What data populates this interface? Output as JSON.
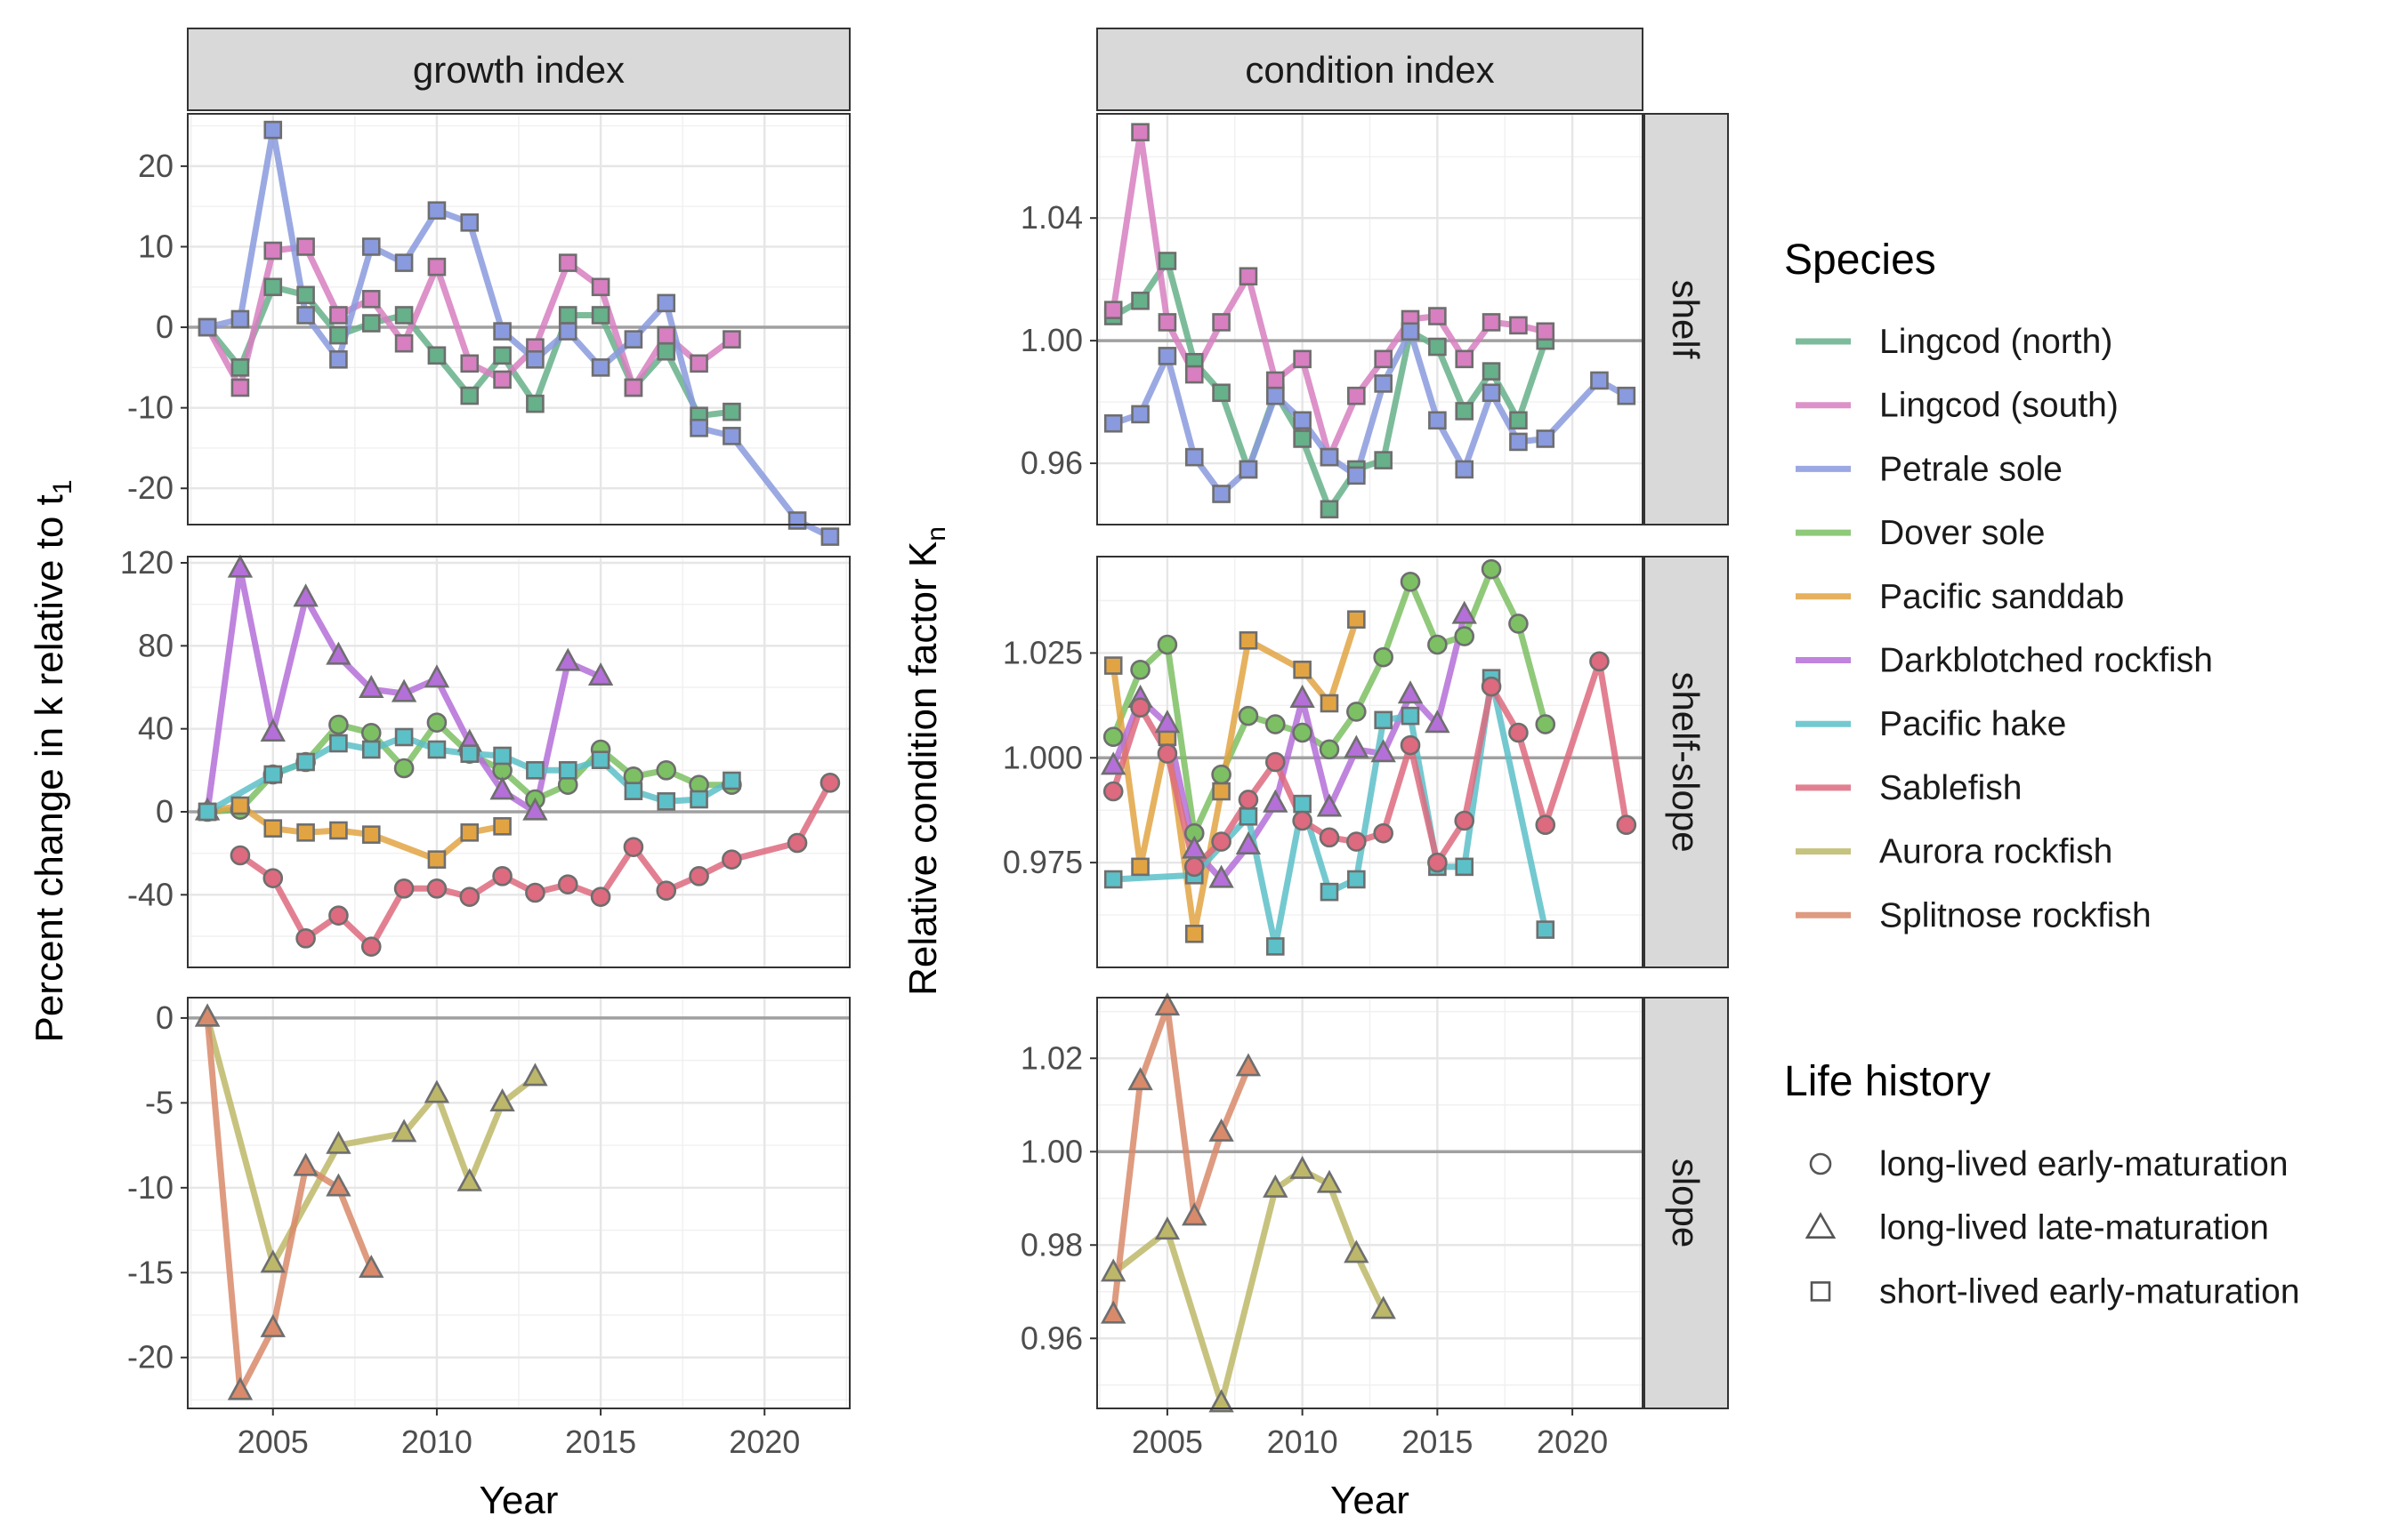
{
  "colors": {
    "Lingcod (north)": "#66b08a",
    "Lingcod (south)": "#d77fc0",
    "Petrale sole": "#8a9ade",
    "Dover sole": "#7cc063",
    "Pacific sanddab": "#e2a443",
    "Darkblotched rockfish": "#b46fd8",
    "Pacific hake": "#5cc0c8",
    "Sablefish": "#dd6a7e",
    "Aurora rockfish": "#bdb869",
    "Splitnose rockfish": "#d88a6a"
  },
  "chart_data": {
    "type": "line",
    "xlabel": "Year",
    "columns": [
      {
        "name": "growth",
        "strip": "growth index",
        "ylabel": "Percent change in k relative to t",
        "ylabel_sub": "1"
      },
      {
        "name": "condition",
        "strip": "condition index",
        "ylabel": "Relative condition factor K",
        "ylabel_sub": "n"
      }
    ],
    "rows": [
      {
        "name": "shelf",
        "strip": "shelf"
      },
      {
        "name": "shelfslope",
        "strip": "shelf-slope"
      },
      {
        "name": "slope",
        "strip": "slope"
      }
    ],
    "x_ticks": [
      2005,
      2010,
      2015,
      2020
    ],
    "x_ticks_labels": [
      "2005",
      "2010",
      "2015",
      "2020"
    ],
    "xlim": [
      2002.4,
      2022.6
    ],
    "legend": {
      "species_title": "Species",
      "species": [
        "Lingcod (north)",
        "Lingcod (south)",
        "Petrale sole",
        "Dover sole",
        "Pacific sanddab",
        "Darkblotched rockfish",
        "Pacific hake",
        "Sablefish",
        "Aurora rockfish",
        "Splitnose rockfish"
      ],
      "life_title": "Life history",
      "life": [
        {
          "label": "long-lived early-maturation",
          "shape": "circle"
        },
        {
          "label": "long-lived late-maturation",
          "shape": "triangle"
        },
        {
          "label": "short-lived early-maturation",
          "shape": "square"
        }
      ]
    },
    "panels": [
      {
        "col": "growth",
        "row": "shelf",
        "ylim": [
          -24.5,
          26.5
        ],
        "yticks": [
          20,
          10,
          0,
          -10,
          -20
        ],
        "yticks_labels": [
          "20",
          "10",
          "0",
          "-10",
          "-20"
        ],
        "ref": 0,
        "series": [
          {
            "species": "Lingcod (north)",
            "shape": "square",
            "x": [
              2003,
              2004,
              2005,
              2006,
              2007,
              2008,
              2009,
              2010,
              2011,
              2012,
              2013,
              2014,
              2015,
              2016,
              2017,
              2018,
              2019
            ],
            "y": [
              0,
              -5,
              5,
              4,
              -1,
              0.5,
              1.5,
              -3.5,
              -8.5,
              -3.5,
              -9.5,
              1.5,
              1.5,
              -7.5,
              -3,
              -11,
              -10.5
            ]
          },
          {
            "species": "Lingcod (south)",
            "shape": "square",
            "x": [
              2003,
              2004,
              2005,
              2006,
              2007,
              2008,
              2009,
              2010,
              2011,
              2012,
              2013,
              2014,
              2015,
              2016,
              2017,
              2018,
              2019
            ],
            "y": [
              0,
              -7.5,
              9.5,
              10,
              1.5,
              3.5,
              -2,
              7.5,
              -4.5,
              -6.5,
              -2.5,
              8,
              5,
              -7.5,
              -1,
              -4.5,
              -1.5
            ]
          },
          {
            "species": "Petrale sole",
            "shape": "square",
            "x": [
              2003,
              2004,
              2005,
              2006,
              2007,
              2008,
              2009,
              2010,
              2011,
              2012,
              2013,
              2014,
              2015,
              2016,
              2017,
              2018,
              2019,
              2021,
              2022
            ],
            "y": [
              0,
              1,
              24.5,
              1.5,
              -4,
              10,
              8,
              14.5,
              13,
              -0.5,
              -4,
              -0.5,
              -5,
              -1.5,
              3,
              -12.5,
              -13.5,
              -24,
              -26
            ]
          }
        ]
      },
      {
        "col": "growth",
        "row": "shelfslope",
        "ylim": [
          -75,
          123
        ],
        "yticks": [
          120,
          80,
          40,
          0,
          -40
        ],
        "yticks_labels": [
          "120",
          "80",
          "40",
          "0",
          "-40"
        ],
        "ref": 0,
        "series": [
          {
            "species": "Dover sole",
            "shape": "circle",
            "x": [
              2003,
              2004,
              2005,
              2006,
              2007,
              2008,
              2009,
              2010,
              2011,
              2012,
              2013,
              2014,
              2015,
              2016,
              2017,
              2018,
              2019
            ],
            "y": [
              0,
              1,
              18,
              24,
              42,
              38,
              21,
              43,
              28,
              20,
              6,
              13,
              30,
              17,
              20,
              13,
              13
            ]
          },
          {
            "species": "Pacific sanddab",
            "shape": "square",
            "x": [
              2003,
              2004,
              2005,
              2006,
              2007,
              2008,
              2010,
              2011,
              2012
            ],
            "y": [
              0,
              3,
              -8,
              -10,
              -9,
              -11,
              -23,
              -10,
              -7
            ]
          },
          {
            "species": "Darkblotched rockfish",
            "shape": "triangle",
            "x": [
              2003,
              2004,
              2005,
              2006,
              2007,
              2008,
              2009,
              2010,
              2011,
              2012,
              2013,
              2014,
              2015
            ],
            "y": [
              0,
              117,
              38,
              103,
              75,
              59,
              57,
              64,
              33,
              10,
              0,
              72,
              65
            ]
          },
          {
            "species": "Pacific hake",
            "shape": "square",
            "x": [
              2003,
              2005,
              2006,
              2007,
              2008,
              2009,
              2010,
              2011,
              2012,
              2013,
              2014,
              2015,
              2016,
              2017,
              2018,
              2019
            ],
            "y": [
              0,
              18,
              24,
              33,
              30,
              36,
              30,
              28,
              27,
              20,
              20,
              25,
              10,
              5,
              6,
              15
            ]
          },
          {
            "species": "Sablefish",
            "shape": "circle",
            "x": [
              2004,
              2005,
              2006,
              2007,
              2008,
              2009,
              2010,
              2011,
              2012,
              2013,
              2014,
              2015,
              2016,
              2017,
              2018,
              2019,
              2021,
              2022
            ],
            "y": [
              -21,
              -32,
              -61,
              -50,
              -65,
              -37,
              -37,
              -41,
              -31,
              -39,
              -35,
              -41,
              -17,
              -38,
              -31,
              -23,
              -15,
              14
            ]
          }
        ]
      },
      {
        "col": "growth",
        "row": "slope",
        "ylim": [
          -23,
          1.2
        ],
        "yticks": [
          0,
          -5,
          -10,
          -15,
          -20
        ],
        "yticks_labels": [
          "0",
          "-5",
          "-10",
          "-15",
          "-20"
        ],
        "ref": 0,
        "series": [
          {
            "species": "Aurora rockfish",
            "shape": "triangle",
            "x": [
              2003,
              2005,
              2007,
              2009,
              2010,
              2011,
              2012,
              2013
            ],
            "y": [
              0,
              -14.5,
              -7.5,
              -6.8,
              -4.5,
              -9.7,
              -5,
              -3.5
            ]
          },
          {
            "species": "Splitnose rockfish",
            "shape": "triangle",
            "x": [
              2003,
              2004,
              2005,
              2006,
              2007,
              2008
            ],
            "y": [
              0,
              -22,
              -18.3,
              -8.8,
              -10,
              -14.8
            ]
          }
        ]
      },
      {
        "col": "condition",
        "row": "shelf",
        "ylim": [
          0.94,
          1.074
        ],
        "yticks": [
          1.04,
          1.0,
          0.96
        ],
        "yticks_labels": [
          "1.04",
          "1.00",
          "0.96"
        ],
        "ref": 1.0,
        "series": [
          {
            "species": "Lingcod (north)",
            "shape": "square",
            "x": [
              2003,
              2004,
              2005,
              2006,
              2007,
              2008,
              2009,
              2010,
              2011,
              2012,
              2013,
              2014,
              2015,
              2016,
              2017,
              2018,
              2019
            ],
            "y": [
              1.008,
              1.013,
              1.026,
              0.993,
              0.983,
              0.958,
              0.983,
              0.968,
              0.945,
              0.958,
              0.961,
              1.003,
              0.998,
              0.977,
              0.99,
              0.974,
              1.0
            ]
          },
          {
            "species": "Lingcod (south)",
            "shape": "square",
            "x": [
              2003,
              2004,
              2005,
              2006,
              2007,
              2008,
              2009,
              2010,
              2011,
              2012,
              2013,
              2014,
              2015,
              2016,
              2017,
              2018,
              2019
            ],
            "y": [
              1.01,
              1.068,
              1.006,
              0.989,
              1.006,
              1.021,
              0.987,
              0.994,
              0.962,
              0.982,
              0.994,
              1.007,
              1.008,
              0.994,
              1.006,
              1.005,
              1.003
            ]
          },
          {
            "species": "Petrale sole",
            "shape": "square",
            "x": [
              2003,
              2004,
              2005,
              2006,
              2007,
              2008,
              2009,
              2010,
              2011,
              2012,
              2013,
              2014,
              2015,
              2016,
              2017,
              2018,
              2019,
              2021,
              2022
            ],
            "y": [
              0.973,
              0.976,
              0.995,
              0.962,
              0.95,
              0.958,
              0.982,
              0.974,
              0.962,
              0.956,
              0.986,
              1.003,
              0.974,
              0.958,
              0.983,
              0.967,
              0.968,
              0.987,
              0.982
            ]
          }
        ]
      },
      {
        "col": "condition",
        "row": "shelfslope",
        "ylim": [
          0.95,
          1.048
        ],
        "yticks": [
          1.025,
          1.0,
          0.975
        ],
        "yticks_labels": [
          "1.025",
          "1.000",
          "0.975"
        ],
        "ref": 1.0,
        "series": [
          {
            "species": "Dover sole",
            "shape": "circle",
            "x": [
              2003,
              2004,
              2005,
              2006,
              2007,
              2008,
              2009,
              2010,
              2011,
              2012,
              2013,
              2014,
              2015,
              2016,
              2017,
              2018,
              2019
            ],
            "y": [
              1.005,
              1.021,
              1.027,
              0.982,
              0.996,
              1.01,
              1.008,
              1.006,
              1.002,
              1.011,
              1.024,
              1.042,
              1.027,
              1.029,
              1.045,
              1.032,
              1.008
            ]
          },
          {
            "species": "Pacific sanddab",
            "shape": "square",
            "x": [
              2003,
              2004,
              2005,
              2006,
              2007,
              2008,
              2010,
              2011,
              2012
            ],
            "y": [
              1.022,
              0.974,
              1.005,
              0.958,
              0.992,
              1.028,
              1.021,
              1.013,
              1.033
            ]
          },
          {
            "species": "Darkblotched rockfish",
            "shape": "triangle",
            "x": [
              2003,
              2004,
              2005,
              2006,
              2007,
              2008,
              2009,
              2010,
              2011,
              2012,
              2013,
              2014,
              2015,
              2016
            ],
            "y": [
              0.998,
              1.014,
              1.008,
              0.978,
              0.971,
              0.979,
              0.989,
              1.014,
              0.988,
              1.002,
              1.001,
              1.015,
              1.008,
              1.034
            ]
          },
          {
            "species": "Pacific hake",
            "shape": "square",
            "x": [
              2003,
              2006,
              2008,
              2009,
              2010,
              2011,
              2012,
              2013,
              2014,
              2015,
              2016,
              2017,
              2019
            ],
            "y": [
              0.971,
              0.972,
              0.986,
              0.955,
              0.989,
              0.968,
              0.971,
              1.009,
              1.01,
              0.974,
              0.974,
              1.019,
              0.959
            ]
          },
          {
            "species": "Sablefish",
            "shape": "circle",
            "x": [
              2003,
              2004,
              2005,
              2006,
              2007,
              2008,
              2009,
              2010,
              2011,
              2012,
              2013,
              2014,
              2015,
              2016,
              2017,
              2018,
              2019,
              2021,
              2022
            ],
            "y": [
              0.992,
              1.012,
              1.001,
              0.974,
              0.98,
              0.99,
              0.999,
              0.985,
              0.981,
              0.98,
              0.982,
              1.003,
              0.975,
              0.985,
              1.017,
              1.006,
              0.984,
              1.023,
              0.984
            ]
          }
        ]
      },
      {
        "col": "condition",
        "row": "slope",
        "ylim": [
          0.945,
          1.033
        ],
        "yticks": [
          1.02,
          1.0,
          0.98,
          0.96
        ],
        "yticks_labels": [
          "1.02",
          "1.00",
          "0.98",
          "0.96"
        ],
        "ref": 1.0,
        "series": [
          {
            "species": "Aurora rockfish",
            "shape": "triangle",
            "x": [
              2003,
              2005,
              2007,
              2009,
              2010,
              2011,
              2012,
              2013
            ],
            "y": [
              0.974,
              0.983,
              0.946,
              0.992,
              0.996,
              0.993,
              0.978,
              0.966
            ]
          },
          {
            "species": "Splitnose rockfish",
            "shape": "triangle",
            "x": [
              2003,
              2004,
              2005,
              2006,
              2007,
              2008
            ],
            "y": [
              0.965,
              1.015,
              1.031,
              0.986,
              1.004,
              1.018
            ]
          }
        ]
      }
    ]
  }
}
